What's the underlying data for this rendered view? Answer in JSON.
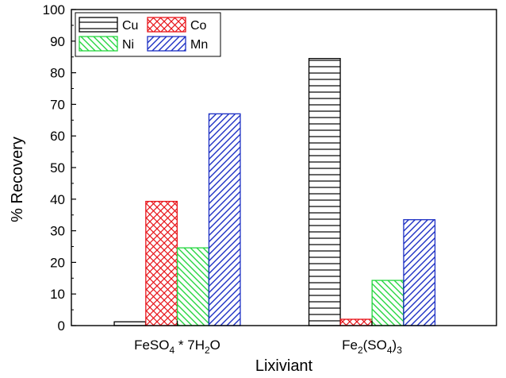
{
  "chart_data": {
    "type": "bar",
    "categories": [
      {
        "base": "FeSO",
        "sub1": "4",
        "mid": " * 7H",
        "sub2": "2",
        "tail": "O",
        "sub3": ""
      },
      {
        "base": "Fe",
        "sub1": "2",
        "mid": "(SO",
        "sub2": "4",
        "tail": ")",
        "sub3": "3"
      }
    ],
    "series": [
      {
        "name": "Cu",
        "values": [
          1.2,
          84.5
        ],
        "color": "#000000",
        "pattern": "horizontal"
      },
      {
        "name": "Co",
        "values": [
          39.3,
          2.0
        ],
        "color": "#e8141a",
        "pattern": "crosshatch"
      },
      {
        "name": "Ni",
        "values": [
          24.6,
          14.3
        ],
        "color": "#25d63f",
        "pattern": "backslash"
      },
      {
        "name": "Mn",
        "values": [
          67.0,
          33.5
        ],
        "color": "#1c2fc4",
        "pattern": "slash"
      }
    ],
    "title": "",
    "xlabel": "Lixiviant",
    "ylabel": "% Recovery",
    "ylim": [
      0,
      100
    ],
    "yticks": [
      "0",
      "10",
      "20",
      "30",
      "40",
      "50",
      "60",
      "70",
      "80",
      "90",
      "100"
    ],
    "legend": "top-left",
    "grid": false
  }
}
